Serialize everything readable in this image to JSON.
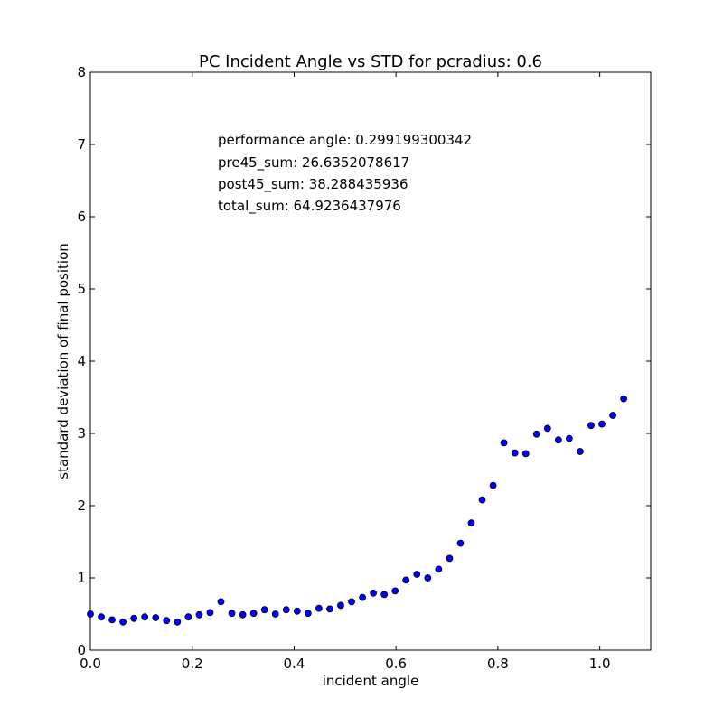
{
  "chart_data": {
    "type": "scatter",
    "title": "PC Incident Angle vs STD for pcradius: 0.6",
    "xlabel": "incident angle",
    "ylabel": "standard deviation of final position",
    "xlim": [
      0.0,
      1.1
    ],
    "ylim": [
      0,
      8
    ],
    "x_ticks": [
      "0.0",
      "0.2",
      "0.4",
      "0.6",
      "0.8",
      "1.0"
    ],
    "x_tick_values": [
      0.0,
      0.2,
      0.4,
      0.6,
      0.8,
      1.0
    ],
    "y_ticks": [
      "0",
      "1",
      "2",
      "3",
      "4",
      "5",
      "6",
      "7",
      "8"
    ],
    "y_tick_values": [
      0,
      1,
      2,
      3,
      4,
      5,
      6,
      7,
      8
    ],
    "grid": false,
    "legend": null,
    "marker_color": "#0000ff",
    "marker_edge_color": "#000000",
    "annotations": [
      "performance angle: 0.299199300342",
      "pre45_sum: 26.6352078617",
      "post45_sum: 38.288435936",
      "total_sum: 64.9236437976"
    ],
    "series": [
      {
        "points": [
          [
            0.0,
            0.5
          ],
          [
            0.0214,
            0.46
          ],
          [
            0.0427,
            0.42
          ],
          [
            0.0641,
            0.39
          ],
          [
            0.0855,
            0.44
          ],
          [
            0.1068,
            0.46
          ],
          [
            0.1282,
            0.45
          ],
          [
            0.1496,
            0.41
          ],
          [
            0.1709,
            0.39
          ],
          [
            0.1923,
            0.46
          ],
          [
            0.2137,
            0.49
          ],
          [
            0.235,
            0.52
          ],
          [
            0.2564,
            0.67
          ],
          [
            0.2778,
            0.51
          ],
          [
            0.2991,
            0.49
          ],
          [
            0.3205,
            0.51
          ],
          [
            0.3419,
            0.56
          ],
          [
            0.3632,
            0.5
          ],
          [
            0.3846,
            0.56
          ],
          [
            0.406,
            0.54
          ],
          [
            0.4273,
            0.51
          ],
          [
            0.4487,
            0.58
          ],
          [
            0.4701,
            0.57
          ],
          [
            0.4914,
            0.62
          ],
          [
            0.5128,
            0.67
          ],
          [
            0.5342,
            0.73
          ],
          [
            0.5555,
            0.79
          ],
          [
            0.5769,
            0.77
          ],
          [
            0.5983,
            0.82
          ],
          [
            0.6196,
            0.97
          ],
          [
            0.641,
            1.05
          ],
          [
            0.6624,
            1.0
          ],
          [
            0.6837,
            1.12
          ],
          [
            0.7051,
            1.27
          ],
          [
            0.7265,
            1.48
          ],
          [
            0.7478,
            1.76
          ],
          [
            0.7692,
            2.08
          ],
          [
            0.7906,
            2.28
          ],
          [
            0.8119,
            2.87
          ],
          [
            0.8333,
            2.73
          ],
          [
            0.8547,
            2.72
          ],
          [
            0.876,
            2.99
          ],
          [
            0.8974,
            3.07
          ],
          [
            0.9188,
            2.91
          ],
          [
            0.9401,
            2.93
          ],
          [
            0.9615,
            2.75
          ],
          [
            0.9829,
            3.11
          ],
          [
            1.0042,
            3.13
          ],
          [
            1.0256,
            3.25
          ],
          [
            1.047,
            3.48
          ]
        ]
      }
    ]
  }
}
